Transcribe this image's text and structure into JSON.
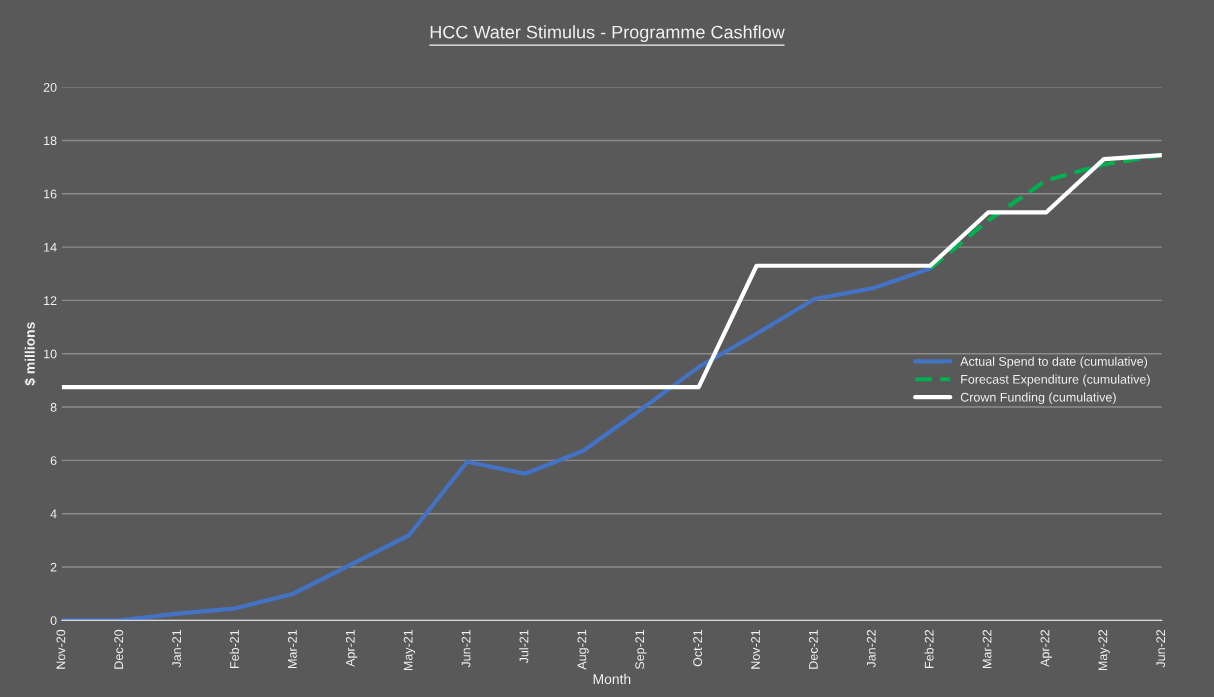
{
  "chart_data": {
    "type": "line",
    "title": "HCC Water Stimulus - Programme Cashflow",
    "xlabel": "Month",
    "ylabel": "$ millions",
    "categories": [
      "Nov-20",
      "Dec-20",
      "Jan-21",
      "Feb-21",
      "Mar-21",
      "Apr-21",
      "May-21",
      "Jun-21",
      "Jul-21",
      "Aug-21",
      "Sep-21",
      "Oct-21",
      "Nov-21",
      "Dec-21",
      "Jan-22",
      "Feb-22",
      "Mar-22",
      "Apr-22",
      "May-22",
      "Jun-22"
    ],
    "series": [
      {
        "name": "Actual Spend to date (cumulative)",
        "color": "#4472c4",
        "line_style": "solid",
        "values": [
          0,
          0,
          0.25,
          0.45,
          1.0,
          2.1,
          3.2,
          5.95,
          5.5,
          6.35,
          7.9,
          9.5,
          10.75,
          12.05,
          12.45,
          13.2,
          null,
          null,
          null,
          null
        ]
      },
      {
        "name": "Forecast Expenditure (cumulative)",
        "color": "#00b050",
        "line_style": "dashed",
        "values": [
          null,
          null,
          null,
          null,
          null,
          null,
          null,
          null,
          null,
          null,
          null,
          null,
          null,
          null,
          null,
          13.2,
          15.0,
          16.5,
          17.1,
          17.45
        ]
      },
      {
        "name": "Crown Funding (cumulative)",
        "color": "#ffffff",
        "line_style": "solid",
        "values": [
          8.75,
          8.75,
          8.75,
          8.75,
          8.75,
          8.75,
          8.75,
          8.75,
          8.75,
          8.75,
          8.75,
          8.75,
          13.3,
          13.3,
          13.3,
          13.3,
          15.3,
          15.3,
          17.3,
          17.45
        ]
      }
    ],
    "ylim": [
      0,
      20
    ],
    "yticks": [
      0,
      2,
      4,
      6,
      8,
      10,
      12,
      14,
      16,
      18,
      20
    ],
    "grid": "y",
    "legend": "right",
    "marker": "none"
  }
}
